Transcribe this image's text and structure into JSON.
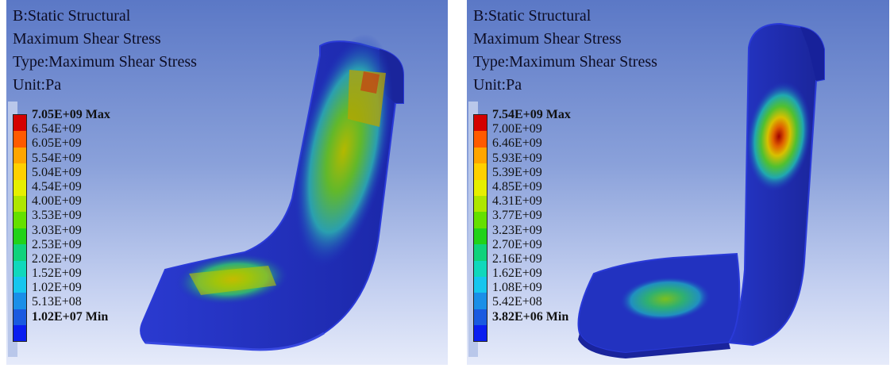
{
  "panels": [
    {
      "title_lines": [
        "B:Static Structural",
        "Maximum Shear Stress",
        "Type:Maximum Shear Stress",
        "Unit:Pa"
      ],
      "legend": [
        "7.05E+09 Max",
        "6.54E+09",
        "6.05E+09",
        "5.54E+09",
        "5.04E+09",
        "4.54E+09",
        "4.00E+09",
        "3.53E+09",
        "3.03E+09",
        "2.53E+09",
        "2.02E+09",
        "1.52E+09",
        "1.02E+09",
        "5.13E+08",
        "1.02E+07 Min"
      ]
    },
    {
      "title_lines": [
        "B:Static Structural",
        "Maximum Shear Stress",
        "Type:Maximum Shear Stress",
        "Unit:Pa"
      ],
      "legend": [
        "7.54E+09 Max",
        "7.00E+09",
        "6.46E+09",
        "5.93E+09",
        "5.39E+09",
        "4.85E+09",
        "4.31E+09",
        "3.77E+09",
        "3.23E+09",
        "2.70E+09",
        "2.16E+09",
        "1.62E+09",
        "1.08E+09",
        "5.42E+08",
        "3.82E+06 Min"
      ]
    }
  ],
  "colors": {
    "scale": [
      "#d40000",
      "#ff5a00",
      "#ffa500",
      "#ffd000",
      "#e6ef00",
      "#aee600",
      "#64e000",
      "#22d21a",
      "#10d27c",
      "#10d8bc",
      "#16c6ee",
      "#1a8fe8",
      "#1a5ae0",
      "#0a1ef0"
    ],
    "model_base": "#1f2fbf",
    "model_edge": "#2a3ad8"
  }
}
